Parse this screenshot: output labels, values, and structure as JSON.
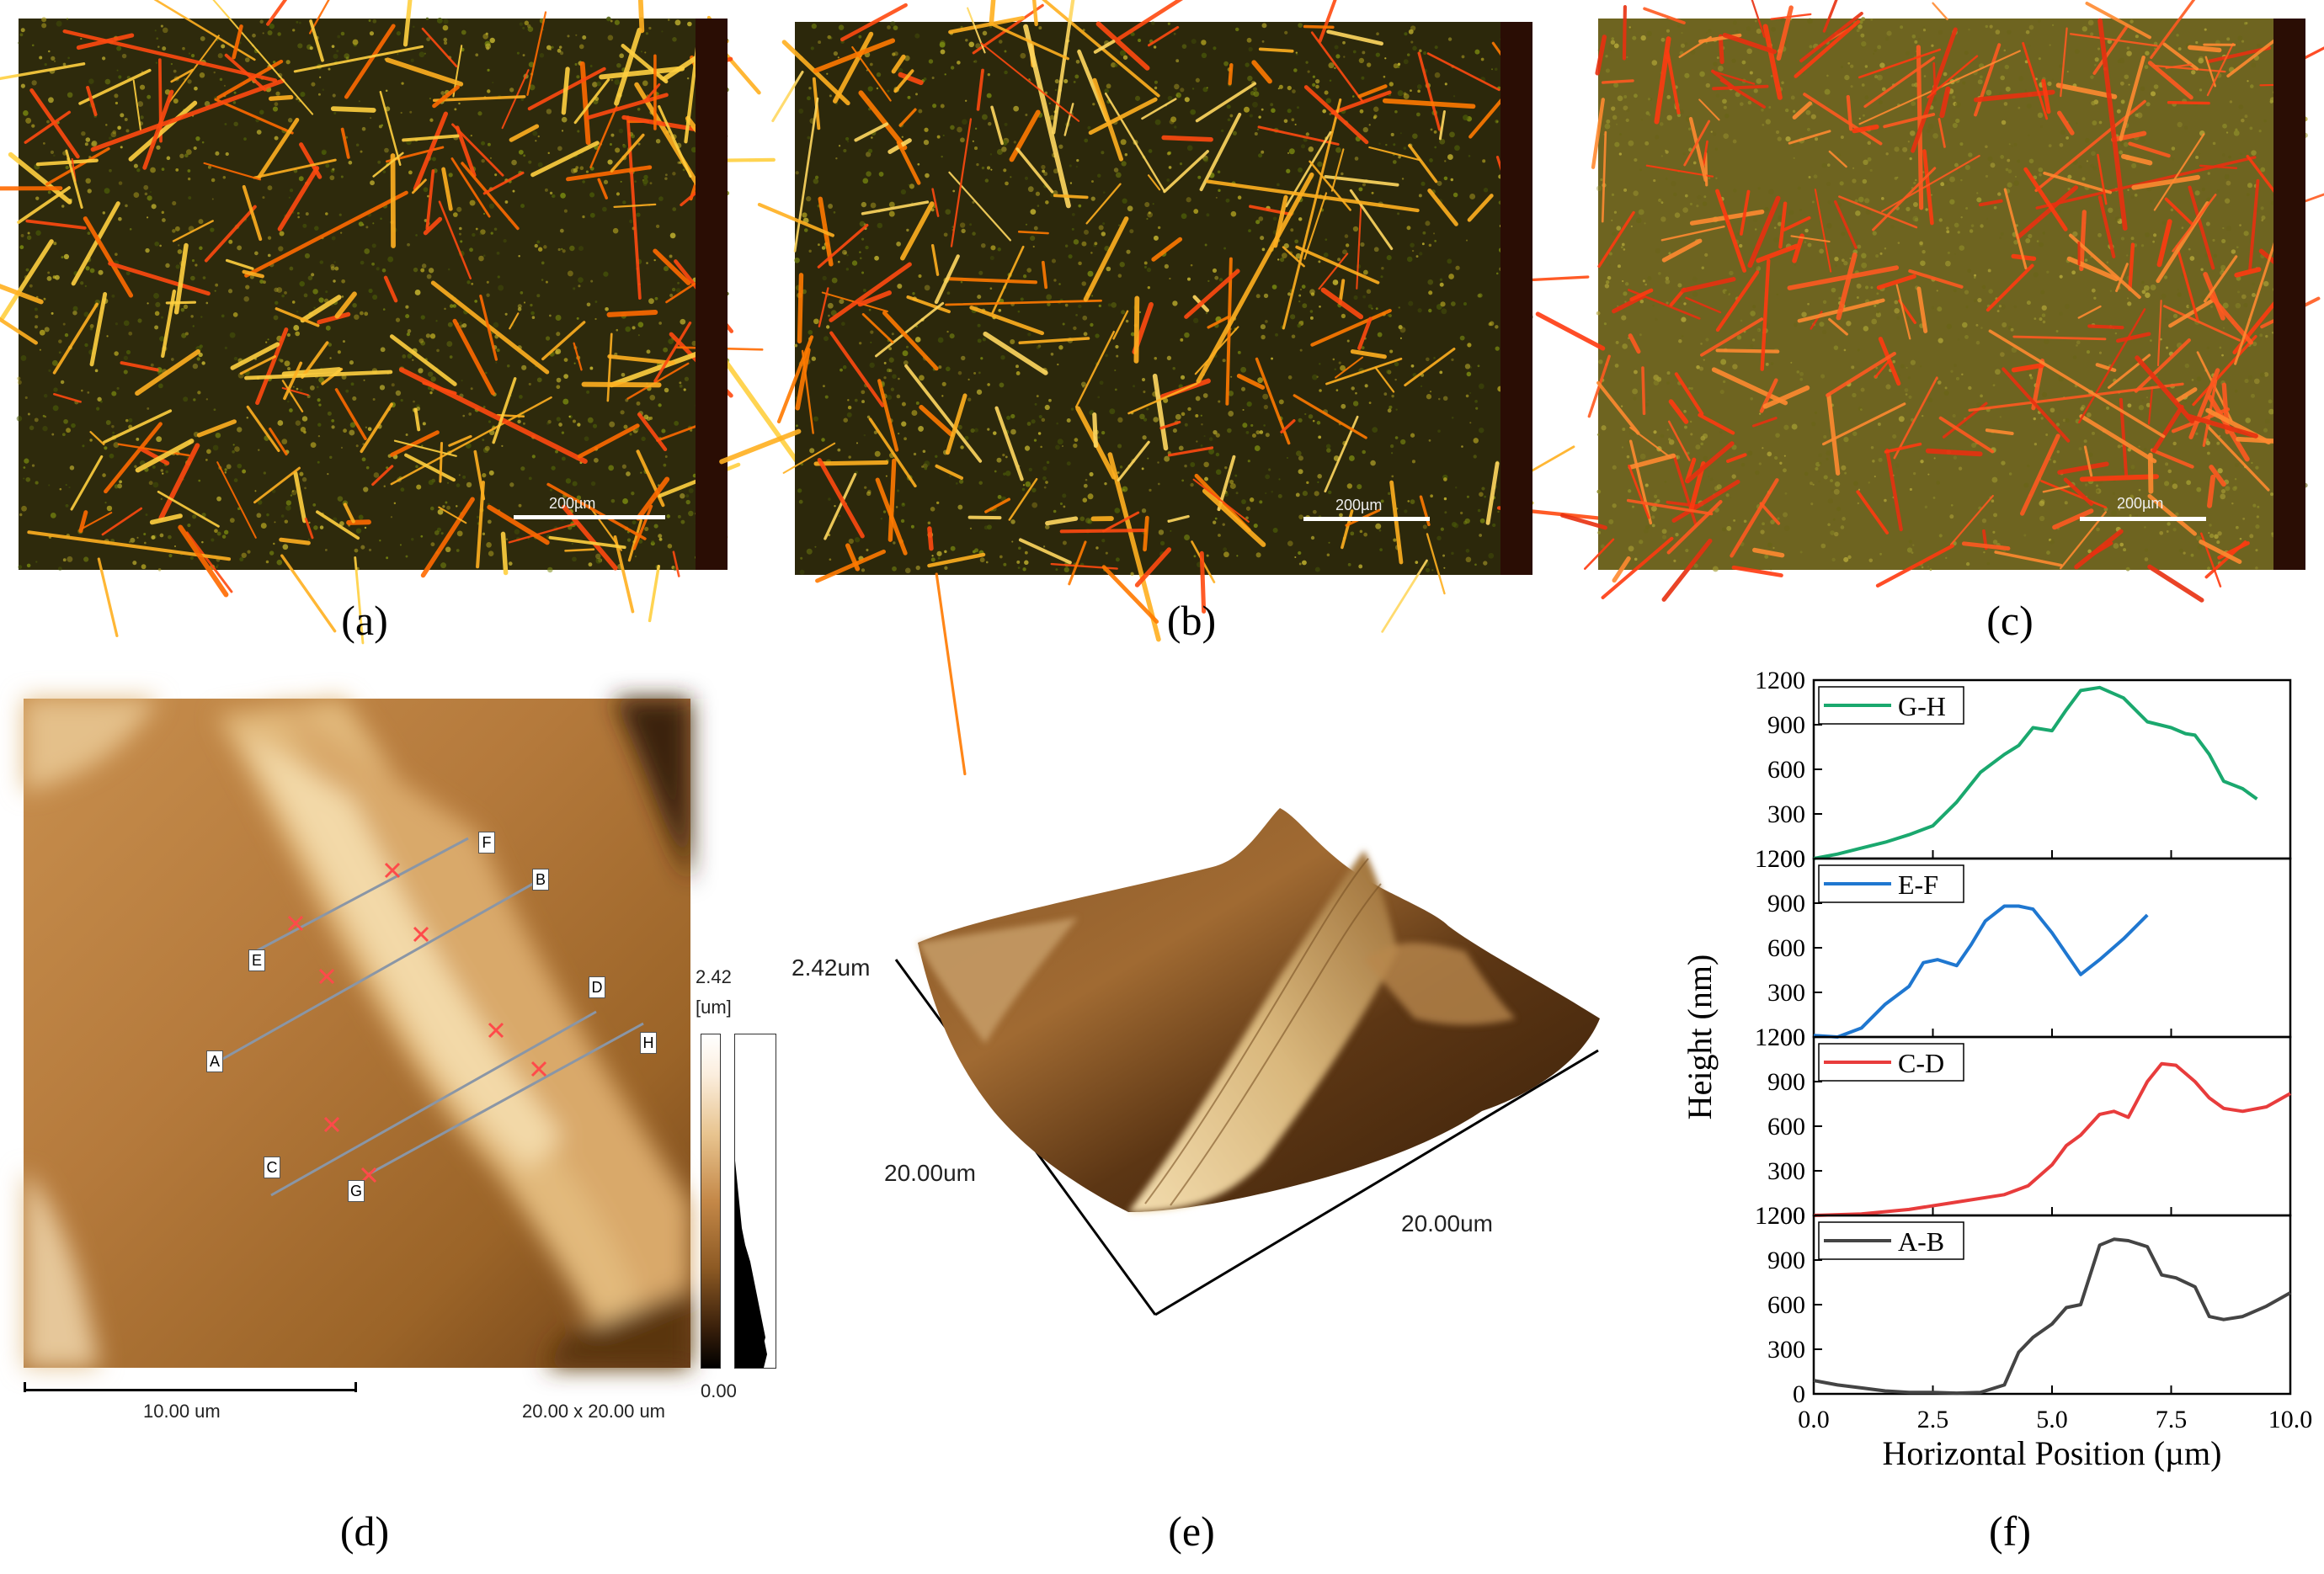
{
  "panels": {
    "a": {
      "caption": "(a)",
      "scale": "200µm"
    },
    "b": {
      "caption": "(b)",
      "scale": "200µm"
    },
    "c": {
      "caption": "(c)",
      "scale": "200µm"
    },
    "d": {
      "caption": "(d)",
      "scalebar": "10.00 um",
      "size": "20.00 x 20.00 um",
      "colorbar_max": "2.42",
      "colorbar_unit": "[um]",
      "colorbar_min": "0.00",
      "points": [
        "A",
        "B",
        "C",
        "D",
        "E",
        "F",
        "G",
        "H"
      ]
    },
    "e": {
      "caption": "(e)",
      "zlabel": "2.42um",
      "xlabel": "20.00um",
      "ylabel": "20.00um"
    },
    "f": {
      "caption": "(f)"
    }
  },
  "chart_data": {
    "type": "line",
    "xlabel": "Horizontal Position (µm)",
    "ylabel": "Height (nm)",
    "xlim": [
      0,
      10
    ],
    "xticks": [
      "0.0",
      "2.5",
      "5.0",
      "7.5",
      "10.0"
    ],
    "ylim": [
      0,
      1200
    ],
    "yticks": [
      "0",
      "300",
      "600",
      "900",
      "1200"
    ],
    "subplots": [
      {
        "name": "G-H",
        "color": "#1aa86e",
        "x": [
          0,
          0.5,
          1,
          1.5,
          2,
          2.5,
          3,
          3.5,
          4,
          4.3,
          4.6,
          5,
          5.3,
          5.6,
          6,
          6.5,
          7,
          7.5,
          7.8,
          8,
          8.3,
          8.6,
          9,
          9.3
        ],
        "y": [
          0,
          30,
          70,
          110,
          160,
          220,
          380,
          580,
          700,
          760,
          880,
          860,
          1000,
          1130,
          1150,
          1080,
          920,
          880,
          840,
          830,
          700,
          520,
          470,
          400
        ]
      },
      {
        "name": "E-F",
        "color": "#1f77d0",
        "x": [
          0,
          0.5,
          1,
          1.5,
          2,
          2.3,
          2.6,
          3,
          3.3,
          3.6,
          4,
          4.3,
          4.6,
          5,
          5.3,
          5.6,
          6,
          6.5,
          7
        ],
        "y": [
          10,
          0,
          60,
          220,
          340,
          500,
          520,
          480,
          620,
          780,
          880,
          880,
          860,
          700,
          560,
          420,
          520,
          660,
          820
        ]
      },
      {
        "name": "C-D",
        "color": "#e83c3c",
        "x": [
          0,
          1,
          2,
          3,
          4,
          4.5,
          5,
          5.3,
          5.6,
          6,
          6.3,
          6.6,
          7,
          7.3,
          7.6,
          8,
          8.3,
          8.6,
          9,
          9.5,
          10
        ],
        "y": [
          0,
          10,
          40,
          90,
          140,
          200,
          340,
          470,
          540,
          680,
          700,
          660,
          900,
          1020,
          1010,
          900,
          790,
          720,
          700,
          730,
          820
        ]
      },
      {
        "name": "A-B",
        "color": "#444444",
        "x": [
          0,
          0.5,
          1,
          1.5,
          2,
          2.5,
          3,
          3.5,
          4,
          4.3,
          4.6,
          5,
          5.3,
          5.6,
          6,
          6.3,
          6.6,
          7,
          7.3,
          7.6,
          8,
          8.3,
          8.6,
          9,
          9.5,
          10
        ],
        "y": [
          90,
          60,
          40,
          20,
          10,
          10,
          5,
          10,
          60,
          280,
          380,
          470,
          580,
          600,
          1000,
          1040,
          1030,
          990,
          800,
          780,
          720,
          520,
          500,
          520,
          590,
          680
        ]
      }
    ]
  }
}
